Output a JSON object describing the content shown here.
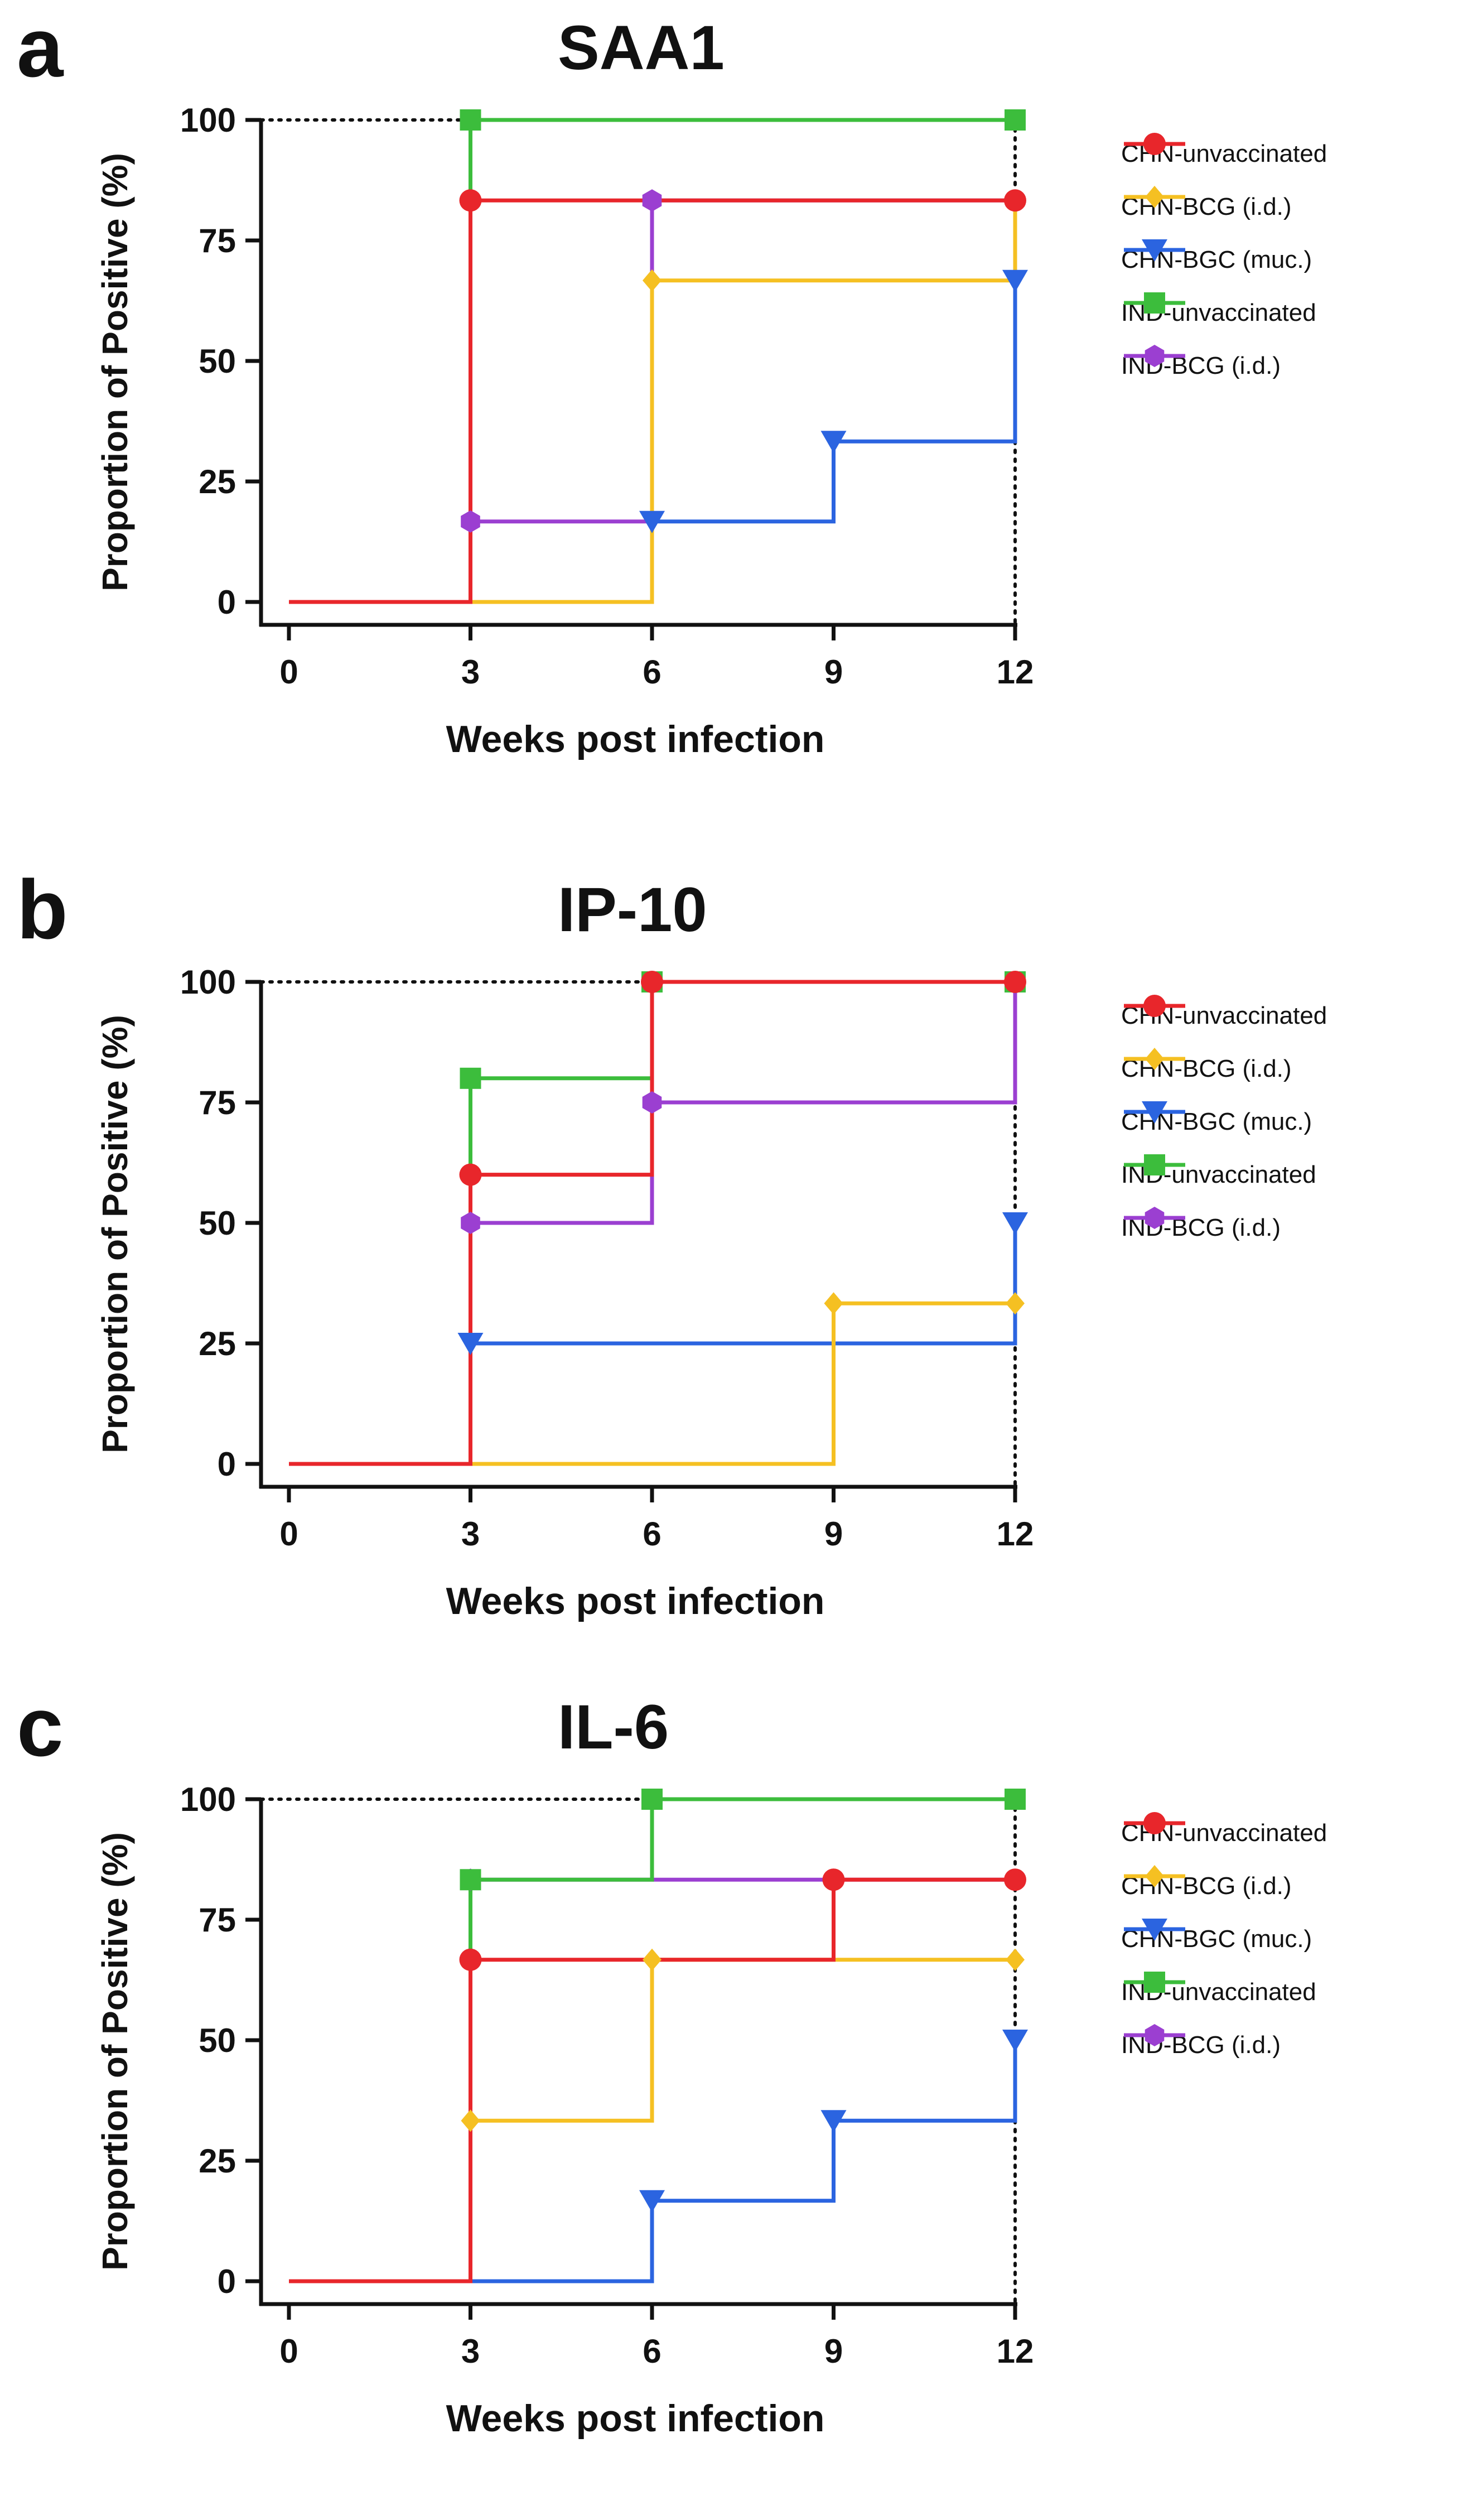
{
  "chart_data": [
    {
      "panel": "a",
      "type": "line",
      "title": "SAA1",
      "xlabel": "Weeks post infection",
      "ylabel": "Proportion of Positive (%)",
      "xlim": [
        0,
        12
      ],
      "ylim": [
        0,
        100
      ],
      "xticks": [
        0,
        3,
        6,
        9,
        12
      ],
      "yticks": [
        0,
        25,
        50,
        75,
        100
      ],
      "legend_position": "right",
      "series": [
        {
          "name": "CHN-unvaccinated",
          "color": "#e8262b",
          "marker": "circle",
          "x": [
            0,
            3,
            6,
            9,
            12
          ],
          "values": [
            0,
            83.3,
            83.3,
            83.3,
            83.3
          ]
        },
        {
          "name": "CHN-BCG (i.d.)",
          "color": "#f5c022",
          "marker": "diamond",
          "x": [
            0,
            3,
            6,
            9,
            12
          ],
          "values": [
            0,
            0,
            66.7,
            66.7,
            83.3
          ]
        },
        {
          "name": "CHN-BGC (muc.)",
          "color": "#2b64e0",
          "marker": "triangle-down",
          "x": [
            0,
            3,
            6,
            9,
            12
          ],
          "values": [
            0,
            0,
            16.7,
            33.3,
            66.7
          ]
        },
        {
          "name": "IND-unvaccinated",
          "color": "#3cbd3c",
          "marker": "square",
          "x": [
            0,
            3,
            6,
            9,
            12
          ],
          "values": [
            0,
            100,
            100,
            100,
            100
          ]
        },
        {
          "name": "IND-BCG (i.d.)",
          "color": "#9b3fd1",
          "marker": "hexagon",
          "x": [
            0,
            3,
            6,
            9,
            12
          ],
          "values": [
            0,
            16.7,
            83.3,
            83.3,
            83.3
          ]
        }
      ]
    },
    {
      "panel": "b",
      "type": "line",
      "title": "IP-10",
      "xlabel": "Weeks post infection",
      "ylabel": "Proportion of Positive (%)",
      "xlim": [
        0,
        12
      ],
      "ylim": [
        0,
        100
      ],
      "xticks": [
        0,
        3,
        6,
        9,
        12
      ],
      "yticks": [
        0,
        25,
        50,
        75,
        100
      ],
      "legend_position": "right",
      "series": [
        {
          "name": "CHN-unvaccinated",
          "color": "#e8262b",
          "marker": "circle",
          "x": [
            0,
            3,
            6,
            9,
            12
          ],
          "values": [
            0,
            60,
            100,
            100,
            100
          ]
        },
        {
          "name": "CHN-BCG (i.d.)",
          "color": "#f5c022",
          "marker": "diamond",
          "x": [
            0,
            3,
            6,
            9,
            12
          ],
          "values": [
            0,
            0,
            0,
            33.3,
            33.3
          ]
        },
        {
          "name": "CHN-BGC (muc.)",
          "color": "#2b64e0",
          "marker": "triangle-down",
          "x": [
            0,
            3,
            6,
            9,
            12
          ],
          "values": [
            0,
            25,
            25,
            25,
            50
          ]
        },
        {
          "name": "IND-unvaccinated",
          "color": "#3cbd3c",
          "marker": "square",
          "x": [
            0,
            3,
            6,
            9,
            12
          ],
          "values": [
            0,
            80,
            100,
            100,
            100
          ]
        },
        {
          "name": "IND-BCG (i.d.)",
          "color": "#9b3fd1",
          "marker": "hexagon",
          "x": [
            0,
            3,
            6,
            9,
            12
          ],
          "values": [
            0,
            50,
            75,
            75,
            100
          ]
        }
      ]
    },
    {
      "panel": "c",
      "type": "line",
      "title": "IL-6",
      "xlabel": "Weeks post infection",
      "ylabel": "Proportion of Positive (%)",
      "xlim": [
        0,
        12
      ],
      "ylim": [
        0,
        100
      ],
      "xticks": [
        0,
        3,
        6,
        9,
        12
      ],
      "yticks": [
        0,
        25,
        50,
        75,
        100
      ],
      "legend_position": "right",
      "series": [
        {
          "name": "CHN-unvaccinated",
          "color": "#e8262b",
          "marker": "circle",
          "x": [
            0,
            3,
            6,
            9,
            12
          ],
          "values": [
            0,
            66.7,
            66.7,
            83.3,
            83.3
          ]
        },
        {
          "name": "CHN-BCG (i.d.)",
          "color": "#f5c022",
          "marker": "diamond",
          "x": [
            0,
            3,
            6,
            9,
            12
          ],
          "values": [
            0,
            33.3,
            66.7,
            66.7,
            66.7
          ]
        },
        {
          "name": "CHN-BGC (muc.)",
          "color": "#2b64e0",
          "marker": "triangle-down",
          "x": [
            0,
            3,
            6,
            9,
            12
          ],
          "values": [
            0,
            0,
            16.7,
            33.3,
            50
          ]
        },
        {
          "name": "IND-unvaccinated",
          "color": "#3cbd3c",
          "marker": "square",
          "x": [
            0,
            3,
            6,
            9,
            12
          ],
          "values": [
            0,
            83.3,
            100,
            100,
            100
          ]
        },
        {
          "name": "IND-BCG (i.d.)",
          "color": "#9b3fd1",
          "marker": "hexagon",
          "x": [
            0,
            3,
            6,
            9,
            12
          ],
          "values": [
            0,
            83.3,
            83.3,
            83.3,
            83.3
          ]
        }
      ]
    }
  ]
}
